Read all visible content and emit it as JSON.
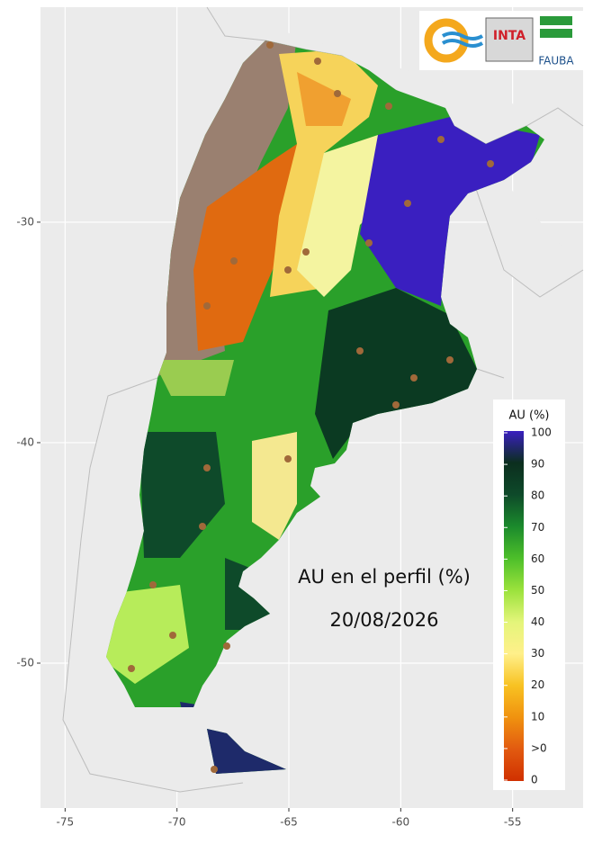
{
  "map": {
    "xlim": [
      -76.1,
      -51.85
    ],
    "ylim": [
      -56.57,
      -20.25
    ],
    "xticks": [
      -75,
      -70,
      -65,
      -60,
      -55
    ],
    "yticks": [
      -30,
      -40,
      -50
    ],
    "legend": {
      "title": "AU (%)",
      "labels": [
        100,
        90,
        80,
        70,
        60,
        50,
        40,
        30,
        20,
        10,
        ">0",
        0
      ],
      "colors": [
        "#3a1fc0",
        "#0b2e1e",
        "#0e4a2a",
        "#1b8a2c",
        "#4dbf2a",
        "#9be23c",
        "#e4f57a",
        "#fff08a",
        "#f8c222",
        "#f0920f",
        "#e25a10",
        "#d03000"
      ]
    },
    "annotation": [
      "AU en el perfil (%)",
      "20/08/2026"
    ],
    "logos": [
      "INTA",
      "FAUBA"
    ]
  }
}
